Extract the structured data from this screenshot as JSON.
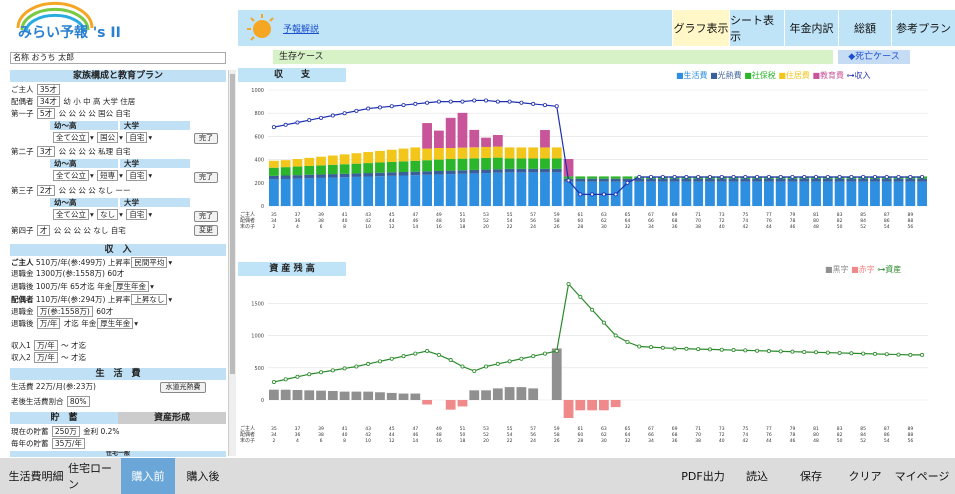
{
  "app": {
    "logo": "みらい予報 's II",
    "accent": "#2a7fd0"
  },
  "nav": {
    "link": "予報解説",
    "buttons": [
      "グラフ表示",
      "シート表示",
      "年金内訳",
      "総額",
      "参考プラン"
    ]
  },
  "cases": {
    "left": "生存ケース",
    "right": "◆死亡ケース"
  },
  "name": {
    "label": "名称",
    "value": "おうち 太郎"
  },
  "family": {
    "title": "家族構成と教育プラン",
    "main": {
      "label": "ご主人",
      "value": "35才"
    },
    "spouse": {
      "label": "配偶者",
      "value": "34才",
      "cols": "幼 小 中 高 大学 住居"
    },
    "child1": {
      "label": "第一子",
      "age": "5才",
      "plan": "公 公 公 公 国公 自宅",
      "sub1": "幼〜高",
      "sub2": "大学",
      "sel1": "全て公立",
      "sel2": "国公",
      "sel3": "自宅",
      "btn": "完了"
    },
    "child2": {
      "label": "第二子",
      "age": "3才",
      "plan": "公 公 公 公 私理 自宅",
      "sub1": "幼〜高",
      "sub2": "大学",
      "sel1": "全て公立",
      "sel2": "短専",
      "sel3": "自宅",
      "btn": "完了"
    },
    "child3": {
      "label": "第三子",
      "age": "2才",
      "plan": "公 公 公 公 なし ーー",
      "sub1": "幼〜高",
      "sub2": "大学",
      "sel1": "全て公立",
      "sel2": "なし",
      "sel3": "自宅",
      "btn": "完了"
    },
    "child4": {
      "label": "第四子",
      "age": "才",
      "plan": "公 公 公 公 なし 自宅",
      "btn": "変更"
    }
  },
  "income": {
    "title": "収　入",
    "main": {
      "label": "ご主人",
      "value": "510万/年(参:499万)",
      "rise_label": "上昇率",
      "rise": "民間平均"
    },
    "main_ret": {
      "label": "退職金",
      "value": "1300万(参:1558万)",
      "age": "60才"
    },
    "main_after": {
      "label": "退職後",
      "value": "100万/年",
      "until": "65才迄",
      "pension_label": "年金",
      "pension": "厚生年金"
    },
    "spouse": {
      "label": "配偶者",
      "value": "110万/年(参:294万)",
      "rise_label": "上昇率",
      "rise": "上昇なし"
    },
    "spouse_ret": {
      "label": "退職金",
      "value": "万(参:1558万)",
      "age": "60才"
    },
    "spouse_after": {
      "label": "退職後",
      "value": "万/年",
      "until": "才迄",
      "pension_label": "年金",
      "pension": "厚生年金"
    },
    "inc1": {
      "label": "収入1",
      "value": "万/年",
      "tilde": "〜",
      "until": "才迄"
    },
    "inc2": {
      "label": "収入2",
      "value": "万/年",
      "tilde": "〜",
      "until": "才迄"
    }
  },
  "living": {
    "title": "生　活　費",
    "cost_label": "生活費",
    "cost": "22万/月(参:23万)",
    "btn": "水道光熱費",
    "old_label": "老後生活費割合",
    "old": "80%"
  },
  "savings": {
    "title": "貯　蓄",
    "title2": "資産形成",
    "cur_label": "現在の貯蓄",
    "cur": "250万",
    "rate_label": "金利",
    "rate": "0.2%",
    "year_label": "毎年の貯蓄",
    "year": "35万/年",
    "more": "住宅一般"
  },
  "bottom": {
    "left": [
      "生活費明細",
      "住宅ローン",
      "購入前",
      "購入後"
    ],
    "right": [
      "PDF出力",
      "読込",
      "保存",
      "クリア",
      "マイページ"
    ]
  },
  "chart1_header": "収　　支",
  "chart2_header": "資 産 残 高",
  "legend1": [
    "■生活費",
    "■光熱費",
    "■社保税",
    "■住居費",
    "■教育費",
    "⊶収入"
  ],
  "legend2": [
    "■黒字",
    "■赤字",
    "⊶資産"
  ],
  "rowlabels": [
    "ご主人",
    "配偶者",
    "末の子"
  ],
  "colors": {
    "living": "#2e8fe0",
    "utility": "#3a5f9a",
    "tax": "#2bb52b",
    "housing": "#f2c61a",
    "edu": "#c8559a",
    "income": "#1e2fb0",
    "black": "#909090",
    "red": "#f08a8a",
    "asset": "#2a8a2a"
  },
  "chart_data": [
    {
      "type": "bar",
      "title": "収　　支",
      "ylim": [
        0,
        1000
      ],
      "categories_age": [
        35,
        36,
        37,
        38,
        39,
        40,
        41,
        42,
        43,
        44,
        45,
        46,
        47,
        48,
        49,
        50,
        51,
        52,
        53,
        54,
        55,
        56,
        57,
        58,
        59,
        60,
        61,
        62,
        63,
        64,
        65,
        66,
        67,
        68,
        69,
        70,
        71,
        72,
        73,
        74,
        75,
        76,
        77,
        78,
        79,
        80,
        81,
        82,
        83,
        84,
        85,
        86,
        87,
        88,
        89,
        90
      ],
      "series": [
        {
          "name": "生活費",
          "values": [
            230,
            233,
            236,
            239,
            242,
            245,
            248,
            251,
            254,
            257,
            260,
            263,
            266,
            269,
            272,
            275,
            278,
            281,
            284,
            287,
            290,
            290,
            290,
            290,
            290,
            210,
            210,
            210,
            210,
            210,
            210,
            210,
            210,
            210,
            210,
            210,
            210,
            210,
            210,
            210,
            210,
            210,
            210,
            210,
            210,
            210,
            210,
            210,
            210,
            210,
            210,
            210,
            210,
            210,
            210,
            210
          ]
        },
        {
          "name": "光熱費",
          "values": [
            30,
            30,
            30,
            30,
            30,
            30,
            30,
            30,
            30,
            30,
            30,
            30,
            30,
            30,
            30,
            30,
            30,
            30,
            30,
            30,
            30,
            30,
            30,
            30,
            30,
            25,
            25,
            25,
            25,
            25,
            25,
            25,
            25,
            25,
            25,
            25,
            25,
            25,
            25,
            25,
            25,
            25,
            25,
            25,
            25,
            25,
            25,
            25,
            25,
            25,
            25,
            25,
            25,
            25,
            25,
            25
          ]
        },
        {
          "name": "社保税",
          "values": [
            70,
            72,
            74,
            76,
            78,
            80,
            82,
            84,
            86,
            88,
            90,
            92,
            94,
            96,
            98,
            100,
            100,
            100,
            100,
            100,
            90,
            90,
            90,
            90,
            90,
            20,
            20,
            20,
            20,
            20,
            20,
            20,
            20,
            20,
            20,
            20,
            20,
            20,
            20,
            20,
            20,
            20,
            20,
            20,
            20,
            20,
            20,
            20,
            20,
            20,
            20,
            20,
            20,
            20,
            20,
            20
          ]
        },
        {
          "name": "住居費",
          "values": [
            60,
            60,
            65,
            70,
            75,
            80,
            85,
            90,
            95,
            100,
            105,
            110,
            115,
            100,
            100,
            95,
            95,
            95,
            95,
            95,
            95,
            95,
            95,
            95,
            95,
            0,
            0,
            0,
            0,
            0,
            0,
            0,
            0,
            0,
            0,
            0,
            0,
            0,
            0,
            0,
            0,
            0,
            0,
            0,
            0,
            0,
            0,
            0,
            0,
            0,
            0,
            0,
            0,
            0,
            0,
            0
          ]
        },
        {
          "name": "教育費",
          "values": [
            0,
            0,
            0,
            0,
            0,
            0,
            0,
            0,
            0,
            0,
            0,
            0,
            0,
            220,
            150,
            260,
            300,
            150,
            80,
            100,
            0,
            0,
            0,
            150,
            0,
            150,
            0,
            0,
            0,
            0,
            0,
            0,
            0,
            0,
            0,
            0,
            0,
            0,
            0,
            0,
            0,
            0,
            0,
            0,
            0,
            0,
            0,
            0,
            0,
            0,
            0,
            0,
            0,
            0,
            0,
            0
          ]
        },
        {
          "name": "収入",
          "values": [
            680,
            700,
            720,
            740,
            760,
            780,
            800,
            820,
            840,
            850,
            860,
            870,
            880,
            890,
            900,
            900,
            900,
            910,
            910,
            900,
            900,
            890,
            880,
            870,
            860,
            220,
            100,
            100,
            100,
            100,
            200,
            250,
            250,
            250,
            250,
            250,
            250,
            250,
            250,
            250,
            250,
            250,
            250,
            250,
            250,
            250,
            250,
            250,
            250,
            250,
            250,
            250,
            250,
            250,
            250,
            250
          ]
        }
      ]
    },
    {
      "type": "bar",
      "title": "資 産 残 高",
      "series": [
        {
          "name": "黒字",
          "values": [
            160,
            160,
            155,
            150,
            145,
            140,
            130,
            130,
            130,
            120,
            110,
            100,
            100,
            0,
            0,
            0,
            0,
            150,
            150,
            180,
            200,
            200,
            180,
            0,
            800,
            0,
            0,
            0,
            0,
            0,
            0,
            0,
            0,
            0,
            0,
            0,
            0,
            0,
            0,
            0,
            0,
            0,
            0,
            0,
            0,
            0,
            0,
            0,
            0,
            0,
            0,
            0,
            0,
            0,
            0,
            0
          ]
        },
        {
          "name": "赤字",
          "values": [
            0,
            0,
            0,
            0,
            0,
            0,
            0,
            0,
            0,
            0,
            0,
            0,
            0,
            -70,
            0,
            -150,
            -100,
            0,
            0,
            0,
            0,
            0,
            0,
            0,
            0,
            -280,
            -160,
            -160,
            -160,
            -110,
            0,
            0,
            0,
            0,
            0,
            0,
            0,
            0,
            0,
            0,
            0,
            0,
            0,
            0,
            0,
            0,
            0,
            0,
            0,
            0,
            0,
            0,
            0,
            0,
            0,
            0
          ]
        },
        {
          "name": "資産",
          "values": [
            280,
            320,
            360,
            400,
            430,
            460,
            490,
            520,
            560,
            600,
            640,
            680,
            720,
            760,
            700,
            620,
            520,
            450,
            520,
            560,
            600,
            640,
            680,
            720,
            760,
            1800,
            1600,
            1400,
            1200,
            1000,
            900,
            830,
            820,
            810,
            800,
            795,
            790,
            785,
            780,
            775,
            770,
            765,
            760,
            755,
            750,
            745,
            740,
            735,
            730,
            725,
            720,
            715,
            710,
            705,
            700,
            700
          ]
        }
      ]
    }
  ]
}
